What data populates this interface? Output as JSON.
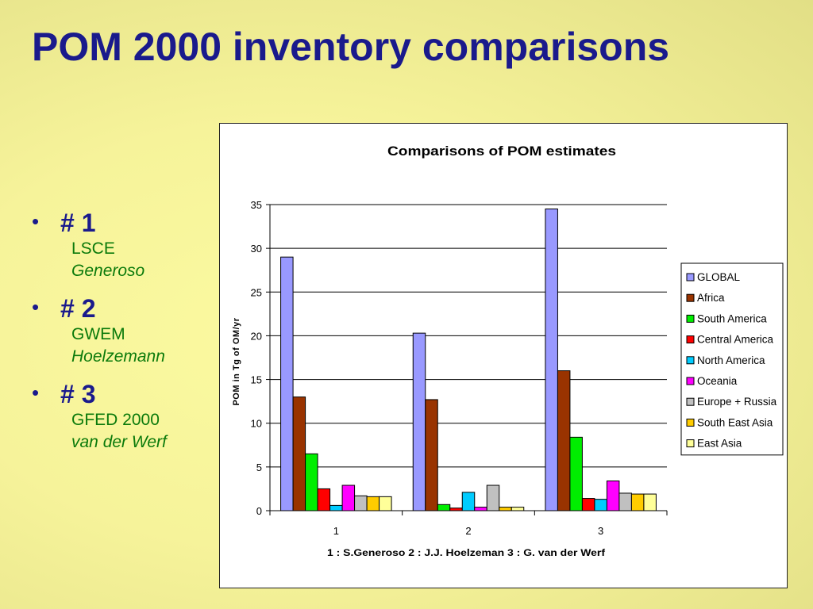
{
  "slide": {
    "title": "POM 2000 inventory comparisons"
  },
  "bullets": [
    {
      "marker": "•",
      "head": "# 1",
      "line1": "LSCE",
      "line2": "Generoso"
    },
    {
      "marker": "•",
      "head": "# 2",
      "line1": "GWEM",
      "line2": "Hoelzemann"
    },
    {
      "marker": "•",
      "head": "# 3",
      "line1": "GFED 2000",
      "line2": "van der Werf"
    }
  ],
  "chart_data": {
    "type": "bar",
    "title": "Comparisons of POM estimates",
    "xlabel": "1 : S.Generoso   2 : J.J. Hoelzeman    3 : G. van der Werf",
    "ylabel": "POM in Tg of OM/yr",
    "categories": [
      "1",
      "2",
      "3"
    ],
    "ylim": [
      0,
      35
    ],
    "yticks": [
      0,
      5,
      10,
      15,
      20,
      25,
      30,
      35
    ],
    "grid": true,
    "legend_position": "right",
    "series": [
      {
        "name": "GLOBAL",
        "color": "#9999ff",
        "values": [
          29.0,
          20.3,
          34.5
        ]
      },
      {
        "name": "Africa",
        "color": "#993300",
        "values": [
          13.0,
          12.7,
          16.0
        ]
      },
      {
        "name": "South America",
        "color": "#00ee00",
        "values": [
          6.5,
          0.7,
          8.4
        ]
      },
      {
        "name": "Central America",
        "color": "#ff0000",
        "values": [
          2.5,
          0.3,
          1.4
        ]
      },
      {
        "name": "North America",
        "color": "#00ccff",
        "values": [
          0.6,
          2.1,
          1.3
        ]
      },
      {
        "name": "Oceania",
        "color": "#ff00ff",
        "values": [
          2.9,
          0.4,
          3.4
        ]
      },
      {
        "name": "Europe + Russia",
        "color": "#c0c0c0",
        "values": [
          1.7,
          2.9,
          2.0
        ]
      },
      {
        "name": "South East Asia",
        "color": "#ffcc00",
        "values": [
          1.6,
          0.4,
          1.9
        ]
      },
      {
        "name": "East Asia",
        "color": "#ffff99",
        "values": [
          1.6,
          0.4,
          1.9
        ]
      }
    ]
  }
}
